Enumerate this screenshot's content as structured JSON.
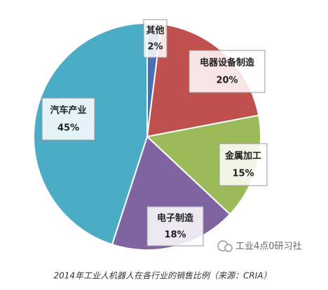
{
  "chart_data": {
    "type": "pie",
    "categories": [
      "其他",
      "电器设备制造",
      "金属加工",
      "电子制造",
      "汽车产业"
    ],
    "values": [
      2,
      20,
      15,
      18,
      45
    ],
    "value_labels": [
      "2%",
      "20%",
      "15%",
      "18%",
      "45%"
    ],
    "colors": [
      "#4a6fb5",
      "#c0504d",
      "#9bbb59",
      "#8064a2",
      "#4bacc6"
    ],
    "caption": "2014年工业人机器人在各行业的销售比例（来源：CRIA）",
    "watermark": "工业4点0研习社"
  }
}
